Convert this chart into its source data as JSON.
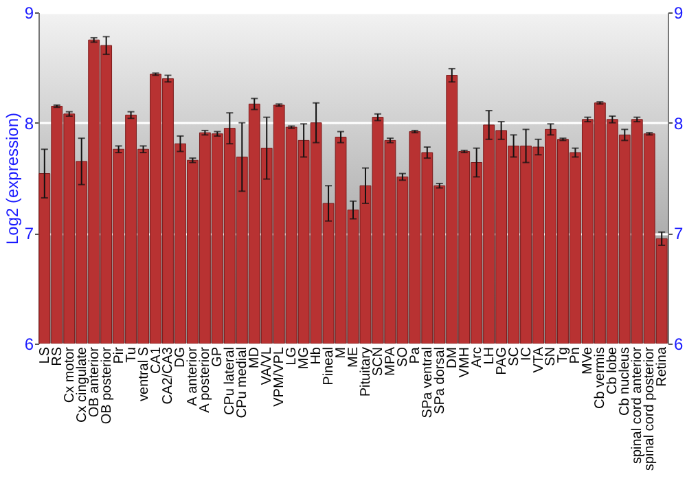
{
  "chart_data": {
    "type": "bar",
    "ylabel": "Log2 (expression)",
    "categories": [
      "LS",
      "RS",
      "Cx motor",
      "Cx cingulate",
      "OB anterior",
      "OB posterior",
      "Pir",
      "Tu",
      "ventral S",
      "CA1",
      "CA2/CA3",
      "DG",
      "A anterior",
      "A posterior",
      "GP",
      "CPu lateral",
      "CPu medial",
      "MD",
      "VA/VL",
      "VPM/VPL",
      "LG",
      "MG",
      "Hb",
      "Pineal",
      "M",
      "ME",
      "Pituitary",
      "SCN",
      "MPA",
      "SO",
      "Pa",
      "SPa ventral",
      "SPa dorsal",
      "DM",
      "VMH",
      "Arc",
      "LH",
      "PAG",
      "SC",
      "IC",
      "VTA",
      "SN",
      "Tg",
      "Pn",
      "MVe",
      "Cb vermis",
      "Cb lobe",
      "Cb nucleus",
      "spinal cord anterior",
      "spinal cord posterior",
      "Retina"
    ],
    "values": [
      7.54,
      8.15,
      8.08,
      7.65,
      8.75,
      8.7,
      7.76,
      8.07,
      7.76,
      8.44,
      8.4,
      7.81,
      7.66,
      7.91,
      7.9,
      7.95,
      7.69,
      8.17,
      7.77,
      8.16,
      7.96,
      7.84,
      8.0,
      7.27,
      7.87,
      7.21,
      7.43,
      8.05,
      7.84,
      7.51,
      7.92,
      7.73,
      7.43,
      8.43,
      7.74,
      7.64,
      7.98,
      7.93,
      7.79,
      7.79,
      7.78,
      7.94,
      7.85,
      7.73,
      8.03,
      8.18,
      8.03,
      7.89,
      8.03,
      7.9,
      6.95
    ],
    "errors": [
      0.22,
      0.01,
      0.02,
      0.21,
      0.02,
      0.08,
      0.03,
      0.03,
      0.03,
      0.01,
      0.03,
      0.07,
      0.02,
      0.02,
      0.02,
      0.14,
      0.31,
      0.05,
      0.28,
      0.01,
      0.01,
      0.15,
      0.18,
      0.16,
      0.05,
      0.08,
      0.16,
      0.03,
      0.02,
      0.03,
      0.01,
      0.05,
      0.02,
      0.06,
      0.01,
      0.13,
      0.13,
      0.08,
      0.1,
      0.15,
      0.07,
      0.05,
      0.01,
      0.04,
      0.02,
      0.01,
      0.03,
      0.05,
      0.02,
      0.01,
      0.06
    ],
    "color": "#b83232",
    "ylim": [
      6,
      9
    ],
    "yticks": [
      6,
      7,
      8,
      9
    ],
    "y2lim": [
      6,
      9
    ],
    "y2ticks": [
      6,
      7,
      8,
      9
    ],
    "grid": "y"
  }
}
